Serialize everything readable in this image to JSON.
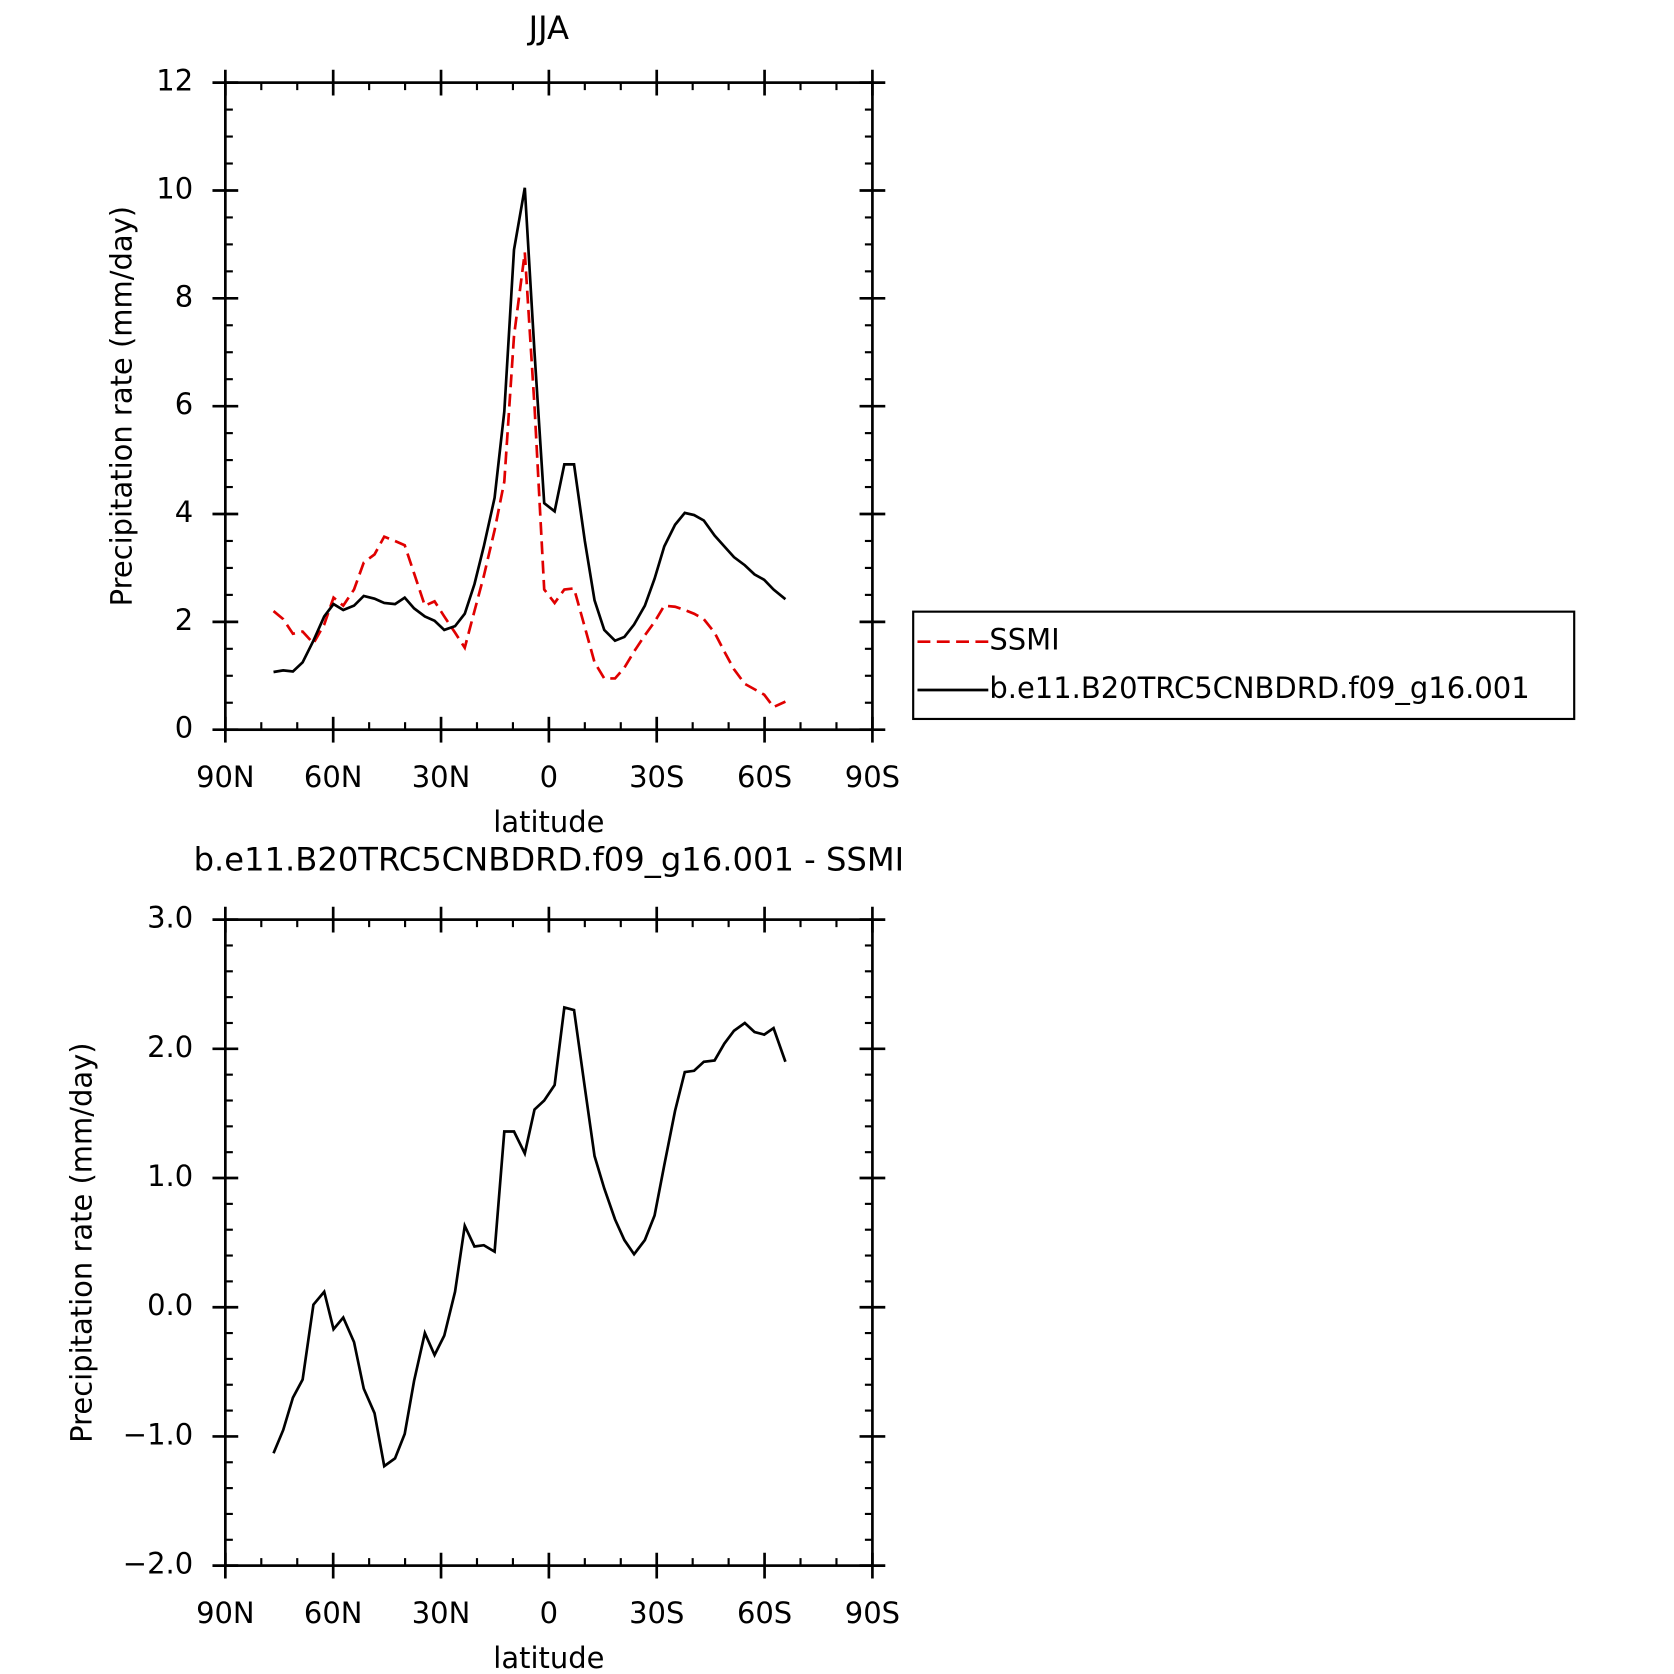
{
  "chart_data": [
    {
      "type": "line",
      "title": "JJA",
      "xlabel": "latitude",
      "ylabel": "Precipitation rate (mm/day)",
      "x": [
        76.6,
        73.9,
        71.2,
        68.5,
        65.5,
        62.5,
        59.9,
        57.2,
        54.2,
        51.5,
        48.5,
        45.8,
        42.8,
        40.1,
        37.5,
        34.5,
        31.8,
        29.1,
        26.1,
        23.4,
        20.7,
        18.1,
        15.1,
        12.4,
        9.7,
        6.7,
        4.0,
        1.3,
        -1.6,
        -4.3,
        -7.0,
        -10.0,
        -12.7,
        -15.4,
        -18.4,
        -21.0,
        -23.7,
        -26.7,
        -29.4,
        -32.1,
        -35.1,
        -37.8,
        -40.4,
        -43.1,
        -46.1,
        -48.8,
        -51.5,
        -54.5,
        -57.2,
        -59.9,
        -62.5,
        -65.8
      ],
      "series": [
        {
          "name": "SSMI",
          "color": "#e00000",
          "dash": true,
          "values": [
            2.2,
            2.05,
            1.78,
            1.82,
            1.6,
            1.95,
            2.45,
            2.3,
            2.6,
            3.1,
            3.25,
            3.58,
            3.5,
            3.42,
            2.9,
            2.3,
            2.38,
            2.1,
            1.8,
            1.52,
            2.2,
            2.85,
            3.7,
            4.6,
            7.3,
            8.85,
            6.0,
            2.6,
            2.35,
            2.6,
            2.62,
            1.9,
            1.25,
            0.95,
            0.95,
            1.15,
            1.45,
            1.75,
            2.0,
            2.3,
            2.28,
            2.22,
            2.15,
            2.05,
            1.8,
            1.45,
            1.12,
            0.85,
            0.75,
            0.65,
            0.42,
            0.52
          ]
        },
        {
          "name": "b.e11.B20TRC5CNBDRD.f09_g16.001",
          "color": "#000000",
          "dash": false,
          "values": [
            1.07,
            1.1,
            1.08,
            1.25,
            1.65,
            2.1,
            2.33,
            2.22,
            2.3,
            2.48,
            2.43,
            2.35,
            2.33,
            2.45,
            2.25,
            2.1,
            2.02,
            1.85,
            1.92,
            2.15,
            2.7,
            3.4,
            4.3,
            5.9,
            8.9,
            10.05,
            7.0,
            4.2,
            4.05,
            4.92,
            4.92,
            3.5,
            2.4,
            1.85,
            1.65,
            1.72,
            1.95,
            2.3,
            2.8,
            3.4,
            3.8,
            4.02,
            3.98,
            3.88,
            3.6,
            3.4,
            3.2,
            3.05,
            2.88,
            2.78,
            2.6,
            2.42
          ]
        }
      ],
      "xlim": [
        90,
        -90
      ],
      "xticks": [
        {
          "value": 90,
          "label": "90N"
        },
        {
          "value": 60,
          "label": "60N"
        },
        {
          "value": 30,
          "label": "30N"
        },
        0,
        {
          "value": -30,
          "label": "30S"
        },
        {
          "value": -60,
          "label": "60S"
        },
        {
          "value": -90,
          "label": "90S"
        }
      ],
      "ylim": [
        0,
        12
      ],
      "yticks": [
        0,
        2,
        4,
        6,
        8,
        10,
        12
      ],
      "legend": "outside-right"
    },
    {
      "type": "line",
      "title": "b.e11.B20TRC5CNBDRD.f09_g16.001 - SSMI",
      "xlabel": "latitude",
      "ylabel": "Precipitation rate (mm/day)",
      "x": [
        76.6,
        73.9,
        71.2,
        68.5,
        65.5,
        62.5,
        59.9,
        57.2,
        54.2,
        51.5,
        48.5,
        45.8,
        42.8,
        40.1,
        37.5,
        34.5,
        31.8,
        29.1,
        26.1,
        23.4,
        20.7,
        18.1,
        15.1,
        12.4,
        9.7,
        6.7,
        4.0,
        1.3,
        -1.6,
        -4.3,
        -7.0,
        -10.0,
        -12.7,
        -15.4,
        -18.4,
        -21.0,
        -23.7,
        -26.7,
        -29.4,
        -32.1,
        -35.1,
        -37.8,
        -40.4,
        -43.1,
        -46.1,
        -48.8,
        -51.5,
        -54.5,
        -57.2,
        -59.9,
        -62.5,
        -65.8
      ],
      "series": [
        {
          "color": "#000000",
          "dash": false,
          "values": [
            -1.13,
            -0.95,
            -0.7,
            -0.56,
            0.02,
            0.12,
            -0.17,
            -0.08,
            -0.27,
            -0.63,
            -0.82,
            -1.23,
            -1.17,
            -0.98,
            -0.57,
            -0.2,
            -0.37,
            -0.22,
            0.12,
            0.63,
            0.47,
            0.48,
            0.43,
            1.36,
            1.36,
            1.19,
            1.53,
            1.6,
            1.72,
            2.32,
            2.3,
            1.7,
            1.17,
            0.92,
            0.68,
            0.52,
            0.41,
            0.52,
            0.71,
            1.1,
            1.52,
            1.82,
            1.83,
            1.9,
            1.91,
            2.04,
            2.14,
            2.2,
            2.13,
            2.11,
            2.16,
            1.9
          ]
        }
      ],
      "xlim": [
        90,
        -90
      ],
      "xticks": [
        {
          "value": 90,
          "label": "90N"
        },
        {
          "value": 60,
          "label": "60N"
        },
        {
          "value": 30,
          "label": "30N"
        },
        0,
        {
          "value": -30,
          "label": "30S"
        },
        {
          "value": -60,
          "label": "60S"
        },
        {
          "value": -90,
          "label": "90S"
        }
      ],
      "ylim": [
        -2,
        3
      ],
      "yticks": [
        {
          "value": -2,
          "label": "−2.0"
        },
        {
          "value": -1,
          "label": "−1.0"
        },
        {
          "value": 0,
          "label": "0.0"
        },
        {
          "value": 1,
          "label": "1.0"
        },
        {
          "value": 2,
          "label": "2.0"
        },
        {
          "value": 3,
          "label": "3.0"
        }
      ]
    }
  ]
}
